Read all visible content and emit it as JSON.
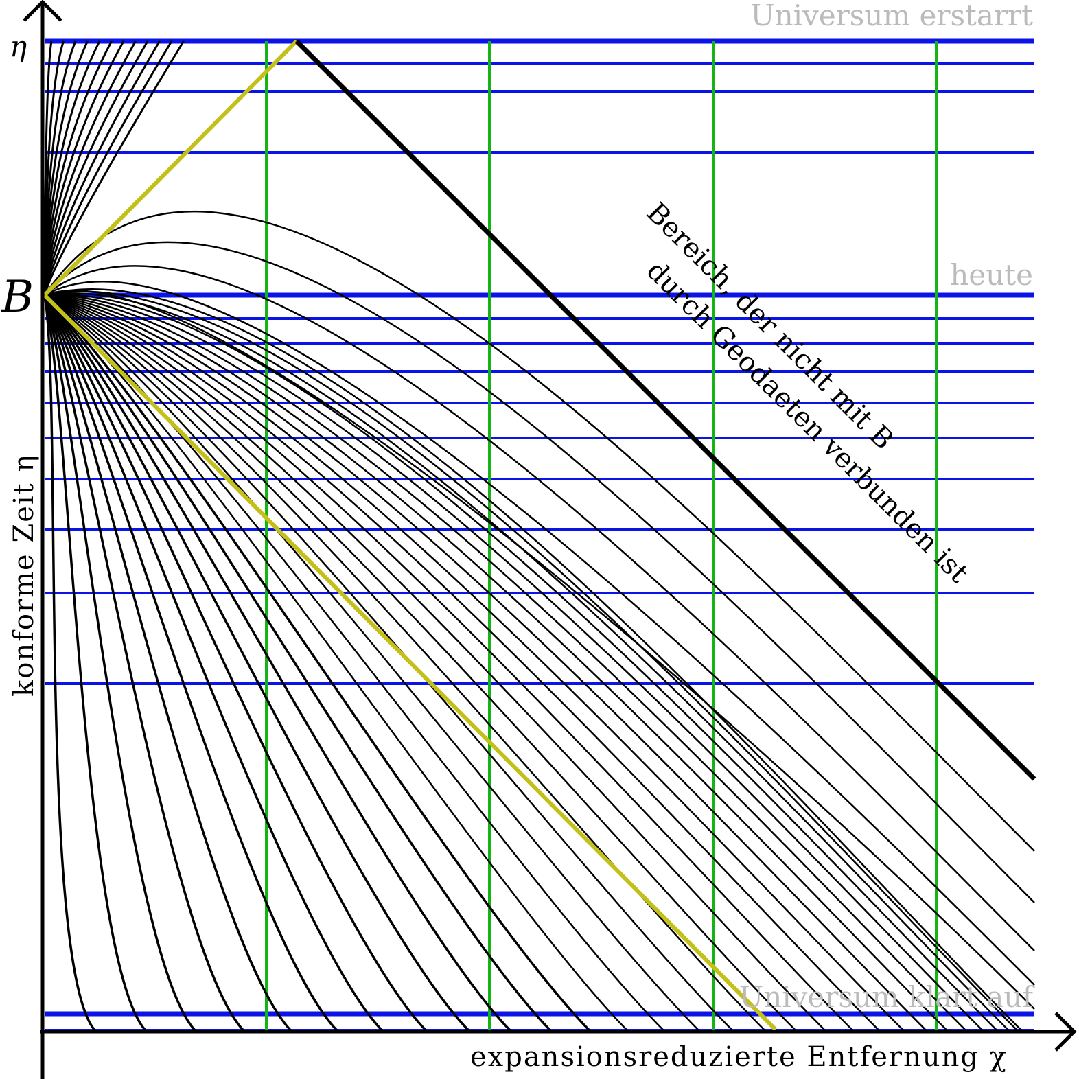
{
  "labels": {
    "eta": "η",
    "top": "Universum erstarrt",
    "today": "heute",
    "point": "B",
    "region": [
      "Bereich, der nicht mit B",
      "durch Geodaeten verbunden ist"
    ],
    "bottom": "Universum klart auf",
    "y_axis": "konforme Zeit η",
    "x_axis": "expansionsreduzierte Entfernung χ"
  }
}
